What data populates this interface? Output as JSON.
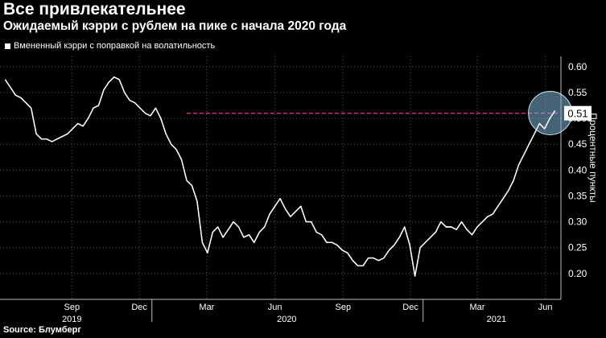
{
  "title": "Все привлекательнее",
  "subtitle": "Ожидаемый кэрри с рублем на пике с начала 2020 года",
  "source": "Source: Блумберг",
  "colors": {
    "background": "#000000",
    "line": "#ffffff",
    "reference": "#e0338a",
    "highlight": "#7fb3d5"
  },
  "chart_data": {
    "type": "line",
    "title": "Все привлекательнее",
    "subtitle": "Ожидаемый кэрри с рублем на пике с начала 2020 года",
    "ylabel": "Процентные пункты",
    "xlabel": "",
    "ylim": [
      0.15,
      0.62
    ],
    "yticks": [
      0.2,
      0.25,
      0.3,
      0.35,
      0.4,
      0.45,
      0.5,
      0.55,
      0.6
    ],
    "ytick_labels": [
      "0.20",
      "0.25",
      "0.30",
      "0.35",
      "0.40",
      "0.45",
      "0.50",
      "0.55",
      "0.60"
    ],
    "grid": true,
    "legend": "top-left",
    "x_ticks": [
      {
        "label": "Sep",
        "date": "2019-09-15"
      },
      {
        "label": "Dec",
        "date": "2019-12-15"
      },
      {
        "label": "Mar",
        "date": "2020-03-15"
      },
      {
        "label": "Jun",
        "date": "2020-06-15"
      },
      {
        "label": "Sep",
        "date": "2020-09-15"
      },
      {
        "label": "Dec",
        "date": "2020-12-15"
      },
      {
        "label": "Mar",
        "date": "2021-03-15"
      },
      {
        "label": "Jun",
        "date": "2021-06-15"
      }
    ],
    "years": [
      {
        "label": "2019",
        "date": "2019-09-15"
      },
      {
        "label": "2020",
        "date": "2020-07-01"
      },
      {
        "label": "2021",
        "date": "2021-04-10"
      }
    ],
    "year_separators": [
      "2020-01-01",
      "2021-01-01"
    ],
    "reference_line": 0.51,
    "last_value_label": "0.51",
    "series": [
      {
        "name": "Вмененный кэрри с поправкой на волатильность",
        "x": [
          "2019-06-17",
          "2019-06-24",
          "2019-07-01",
          "2019-07-08",
          "2019-07-15",
          "2019-07-22",
          "2019-07-29",
          "2019-08-05",
          "2019-08-12",
          "2019-08-19",
          "2019-08-26",
          "2019-09-02",
          "2019-09-09",
          "2019-09-16",
          "2019-09-23",
          "2019-09-30",
          "2019-10-07",
          "2019-10-14",
          "2019-10-21",
          "2019-10-28",
          "2019-11-04",
          "2019-11-11",
          "2019-11-18",
          "2019-11-25",
          "2019-12-02",
          "2019-12-09",
          "2019-12-16",
          "2019-12-23",
          "2019-12-30",
          "2020-01-06",
          "2020-01-13",
          "2020-01-20",
          "2020-01-27",
          "2020-02-03",
          "2020-02-10",
          "2020-02-17",
          "2020-02-24",
          "2020-03-02",
          "2020-03-09",
          "2020-03-16",
          "2020-03-23",
          "2020-03-30",
          "2020-04-06",
          "2020-04-13",
          "2020-04-20",
          "2020-04-27",
          "2020-05-04",
          "2020-05-11",
          "2020-05-18",
          "2020-05-25",
          "2020-06-01",
          "2020-06-08",
          "2020-06-15",
          "2020-06-22",
          "2020-06-29",
          "2020-07-06",
          "2020-07-13",
          "2020-07-20",
          "2020-07-27",
          "2020-08-03",
          "2020-08-10",
          "2020-08-17",
          "2020-08-24",
          "2020-08-31",
          "2020-09-07",
          "2020-09-14",
          "2020-09-21",
          "2020-09-28",
          "2020-10-05",
          "2020-10-12",
          "2020-10-19",
          "2020-10-26",
          "2020-11-02",
          "2020-11-09",
          "2020-11-16",
          "2020-11-23",
          "2020-11-30",
          "2020-12-07",
          "2020-12-14",
          "2020-12-21",
          "2020-12-28",
          "2021-01-04",
          "2021-01-11",
          "2021-01-18",
          "2021-01-25",
          "2021-02-01",
          "2021-02-08",
          "2021-02-15",
          "2021-02-22",
          "2021-03-01",
          "2021-03-08",
          "2021-03-15",
          "2021-03-22",
          "2021-03-29",
          "2021-04-05",
          "2021-04-12",
          "2021-04-19",
          "2021-04-26",
          "2021-05-03",
          "2021-05-10",
          "2021-05-17",
          "2021-05-24",
          "2021-05-31",
          "2021-06-07",
          "2021-06-14",
          "2021-06-21",
          "2021-06-28"
        ],
        "values": [
          0.575,
          0.56,
          0.545,
          0.54,
          0.53,
          0.52,
          0.47,
          0.46,
          0.46,
          0.455,
          0.46,
          0.465,
          0.47,
          0.48,
          0.49,
          0.485,
          0.5,
          0.52,
          0.525,
          0.555,
          0.57,
          0.58,
          0.575,
          0.55,
          0.535,
          0.53,
          0.52,
          0.51,
          0.505,
          0.52,
          0.5,
          0.47,
          0.45,
          0.44,
          0.42,
          0.38,
          0.37,
          0.34,
          0.26,
          0.24,
          0.28,
          0.29,
          0.27,
          0.285,
          0.3,
          0.29,
          0.27,
          0.275,
          0.26,
          0.28,
          0.29,
          0.315,
          0.33,
          0.345,
          0.325,
          0.31,
          0.32,
          0.33,
          0.3,
          0.3,
          0.28,
          0.275,
          0.26,
          0.26,
          0.255,
          0.245,
          0.24,
          0.225,
          0.215,
          0.215,
          0.23,
          0.23,
          0.225,
          0.23,
          0.245,
          0.255,
          0.27,
          0.29,
          0.255,
          0.195,
          0.25,
          0.26,
          0.27,
          0.28,
          0.3,
          0.29,
          0.29,
          0.285,
          0.3,
          0.285,
          0.275,
          0.29,
          0.3,
          0.31,
          0.315,
          0.33,
          0.345,
          0.36,
          0.38,
          0.41,
          0.43,
          0.45,
          0.47,
          0.49,
          0.48,
          0.5,
          0.515
        ]
      }
    ]
  }
}
